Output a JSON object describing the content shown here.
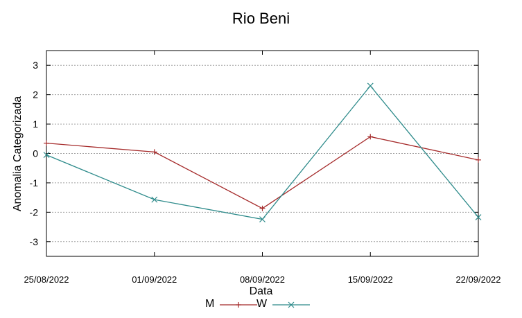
{
  "chart_data": {
    "type": "line",
    "title": "Rio Beni",
    "xlabel": "Data",
    "ylabel": "Anomalia Categorizada",
    "x": [
      "25/08/2022",
      "01/09/2022",
      "08/09/2022",
      "15/09/2022",
      "22/09/2022"
    ],
    "ylim": [
      -3.5,
      3.5
    ],
    "yticks": [
      -3,
      -2,
      -1,
      0,
      1,
      2,
      3
    ],
    "grid": true,
    "legend_position": "bottom",
    "series": [
      {
        "name": "M",
        "color": "#a52a2a",
        "marker": "plus",
        "values": [
          0.35,
          0.05,
          -1.87,
          0.57,
          -0.22
        ]
      },
      {
        "name": "W",
        "color": "#2e8b8b",
        "marker": "cross",
        "values": [
          -0.05,
          -1.57,
          -2.24,
          2.3,
          -2.17
        ]
      }
    ]
  }
}
